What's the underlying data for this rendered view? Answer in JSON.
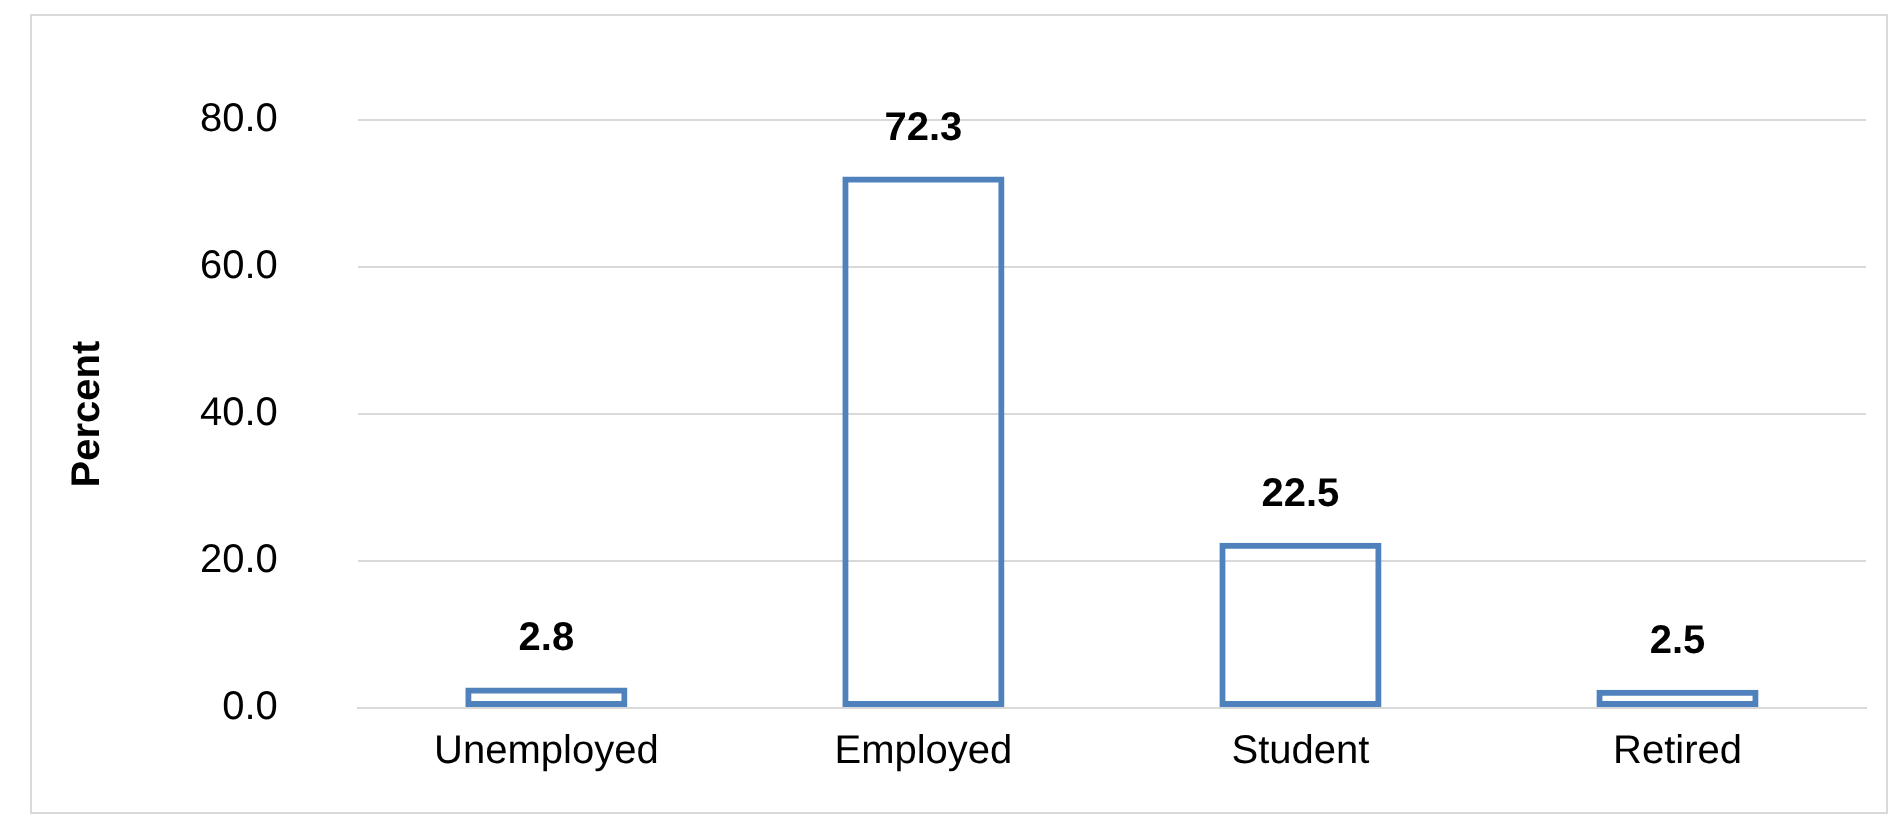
{
  "chart_data": {
    "type": "bar",
    "ylabel": "Percent",
    "categories": [
      "Unemployed",
      "Employed",
      "Student",
      "Retired"
    ],
    "values": [
      2.8,
      72.3,
      22.5,
      2.5
    ],
    "color": "#4f81bd",
    "ylim": [
      0,
      80
    ],
    "yticks": [
      {
        "value": 0,
        "label": "0.0"
      },
      {
        "value": 20,
        "label": "20.0"
      },
      {
        "value": 40,
        "label": "40.0"
      },
      {
        "value": 60,
        "label": "60.0"
      },
      {
        "value": 80,
        "label": "80.0"
      }
    ],
    "grid": "y",
    "data_labels": true
  }
}
